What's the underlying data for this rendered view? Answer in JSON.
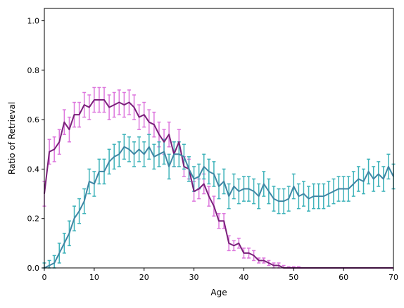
{
  "chart_data": {
    "type": "line",
    "title": "",
    "xlabel": "Age",
    "ylabel": "Ratio of Retrieval",
    "xlim": [
      0,
      70
    ],
    "ylim": [
      0,
      1.05
    ],
    "xticks": [
      0,
      10,
      20,
      30,
      40,
      50,
      60,
      70
    ],
    "yticks": [
      0.0,
      0.2,
      0.4,
      0.6,
      0.8,
      1.0
    ],
    "grid": false,
    "legend": "none",
    "x": [
      0,
      1,
      2,
      3,
      4,
      5,
      6,
      7,
      8,
      9,
      10,
      11,
      12,
      13,
      14,
      15,
      16,
      17,
      18,
      19,
      20,
      21,
      22,
      23,
      24,
      25,
      26,
      27,
      28,
      29,
      30,
      31,
      32,
      33,
      34,
      35,
      36,
      37,
      38,
      39,
      40,
      41,
      42,
      43,
      44,
      45,
      46,
      47,
      48,
      49,
      50,
      51,
      52,
      53,
      54,
      55,
      56,
      57,
      58,
      59,
      60,
      61,
      62,
      63,
      64,
      65,
      66,
      67,
      68,
      69,
      70
    ],
    "series": [
      {
        "color": "#7a1f7a",
        "error_color": "#dd77dd",
        "values": [
          0.3,
          0.47,
          0.48,
          0.51,
          0.59,
          0.56,
          0.62,
          0.62,
          0.66,
          0.65,
          0.68,
          0.68,
          0.68,
          0.65,
          0.66,
          0.67,
          0.66,
          0.67,
          0.65,
          0.61,
          0.62,
          0.59,
          0.58,
          0.54,
          0.51,
          0.54,
          0.46,
          0.51,
          0.41,
          0.4,
          0.31,
          0.32,
          0.34,
          0.29,
          0.25,
          0.19,
          0.19,
          0.1,
          0.09,
          0.1,
          0.06,
          0.06,
          0.05,
          0.03,
          0.03,
          0.02,
          0.01,
          0.01,
          0.0,
          0.0,
          0.0,
          0.0,
          0.0,
          0.0,
          0.0,
          0.0,
          0.0,
          0.0,
          0.0,
          0.0,
          0.0,
          0.0,
          0.0,
          0.0,
          0.0,
          0.0,
          0.0,
          0.0,
          0.0,
          0.0,
          0.0
        ],
        "errors": [
          0.05,
          0.05,
          0.05,
          0.05,
          0.05,
          0.05,
          0.05,
          0.05,
          0.05,
          0.05,
          0.05,
          0.05,
          0.05,
          0.05,
          0.05,
          0.05,
          0.05,
          0.05,
          0.05,
          0.05,
          0.05,
          0.05,
          0.05,
          0.05,
          0.05,
          0.05,
          0.05,
          0.05,
          0.04,
          0.04,
          0.04,
          0.04,
          0.04,
          0.04,
          0.04,
          0.03,
          0.03,
          0.03,
          0.02,
          0.02,
          0.02,
          0.02,
          0.02,
          0.01,
          0.01,
          0.01,
          0.01,
          0.01,
          0.01,
          0.005,
          0.005,
          0.005,
          0,
          0,
          0,
          0,
          0,
          0,
          0,
          0,
          0,
          0,
          0,
          0,
          0,
          0,
          0,
          0,
          0,
          0,
          0
        ]
      },
      {
        "color": "#3f86a4",
        "error_color": "#3fb3ba",
        "values": [
          0.0,
          0.01,
          0.02,
          0.06,
          0.1,
          0.14,
          0.2,
          0.23,
          0.27,
          0.35,
          0.34,
          0.39,
          0.39,
          0.43,
          0.45,
          0.46,
          0.49,
          0.48,
          0.46,
          0.48,
          0.46,
          0.49,
          0.45,
          0.46,
          0.47,
          0.41,
          0.46,
          0.46,
          0.45,
          0.4,
          0.36,
          0.37,
          0.41,
          0.39,
          0.38,
          0.33,
          0.35,
          0.29,
          0.33,
          0.31,
          0.32,
          0.32,
          0.31,
          0.29,
          0.34,
          0.31,
          0.28,
          0.27,
          0.27,
          0.28,
          0.33,
          0.29,
          0.3,
          0.28,
          0.29,
          0.29,
          0.29,
          0.3,
          0.31,
          0.32,
          0.32,
          0.32,
          0.34,
          0.36,
          0.35,
          0.39,
          0.36,
          0.38,
          0.36,
          0.41,
          0.37
        ],
        "errors": [
          0.02,
          0.02,
          0.03,
          0.04,
          0.04,
          0.05,
          0.05,
          0.05,
          0.05,
          0.05,
          0.05,
          0.05,
          0.05,
          0.05,
          0.05,
          0.05,
          0.05,
          0.05,
          0.05,
          0.05,
          0.05,
          0.05,
          0.05,
          0.05,
          0.05,
          0.05,
          0.05,
          0.05,
          0.05,
          0.05,
          0.05,
          0.05,
          0.05,
          0.05,
          0.05,
          0.05,
          0.05,
          0.05,
          0.05,
          0.05,
          0.05,
          0.05,
          0.05,
          0.05,
          0.05,
          0.05,
          0.05,
          0.05,
          0.05,
          0.05,
          0.05,
          0.05,
          0.05,
          0.05,
          0.05,
          0.05,
          0.05,
          0.05,
          0.05,
          0.05,
          0.05,
          0.05,
          0.05,
          0.05,
          0.05,
          0.05,
          0.05,
          0.05,
          0.05,
          0.05,
          0.05
        ]
      }
    ]
  }
}
